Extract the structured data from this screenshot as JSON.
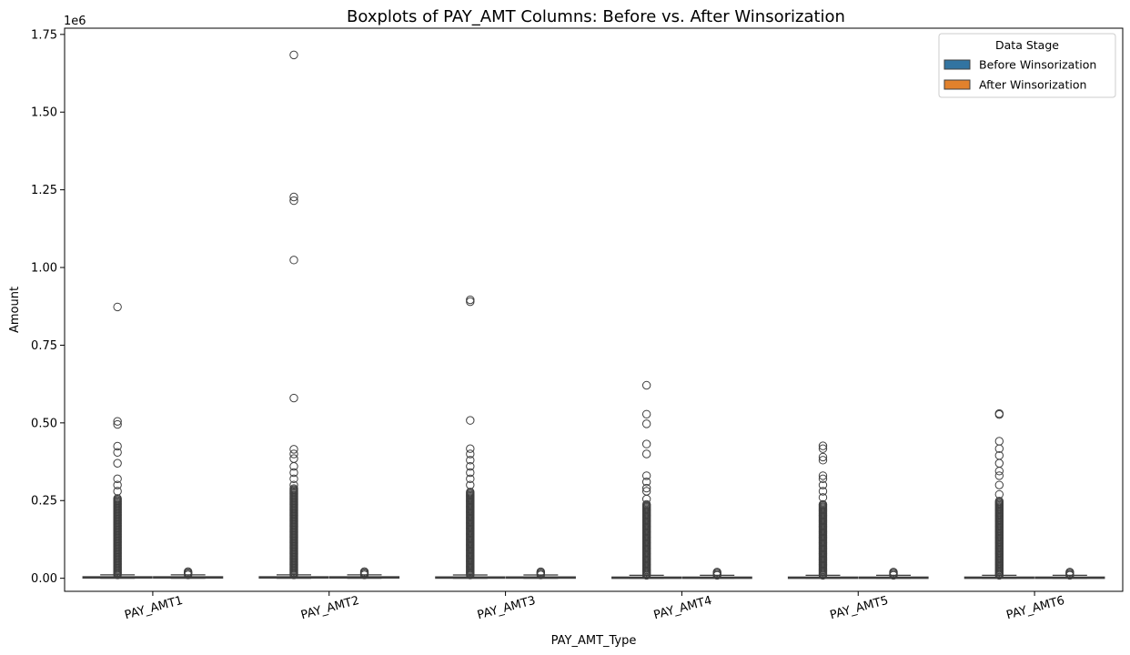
{
  "chart_data": {
    "type": "box",
    "title": "Boxplots of PAY_AMT Columns: Before vs. After Winsorization",
    "xlabel": "PAY_AMT_Type",
    "ylabel": "Amount",
    "y_offset_text": "1e6",
    "y_tick_labels": [
      "0.00",
      "0.25",
      "0.50",
      "0.75",
      "1.00",
      "1.25",
      "1.50",
      "1.75"
    ],
    "y_ticks": [
      0,
      250000,
      500000,
      750000,
      1000000,
      1250000,
      1500000,
      1750000
    ],
    "ylim": [
      -42000,
      1770000
    ],
    "categories": [
      "PAY_AMT1",
      "PAY_AMT2",
      "PAY_AMT3",
      "PAY_AMT4",
      "PAY_AMT5",
      "PAY_AMT6"
    ],
    "x_tick_rotation_deg": -15,
    "grid": false,
    "legend": {
      "title": "Data Stage",
      "position": "top-right",
      "entries": [
        "Before Winsorization",
        "After Winsorization"
      ]
    },
    "series": [
      {
        "name": "Before Winsorization",
        "color": "#3274a1",
        "boxes": [
          {
            "q1": 1000,
            "median": 2100,
            "q3": 5000,
            "whisker_low": 0,
            "whisker_high": 11000,
            "outlier_dense_to": 260000,
            "outliers": [
              280000,
              300000,
              320000,
              370000,
              405000,
              425000,
              495000,
              505000,
              873000
            ]
          },
          {
            "q1": 830,
            "median": 2000,
            "q3": 5000,
            "whisker_low": 0,
            "whisker_high": 11000,
            "outlier_dense_to": 290000,
            "outliers": [
              300000,
              320000,
              340000,
              360000,
              385000,
              400000,
              415000,
              580000,
              1024000,
              1215000,
              1227000,
              1684000
            ]
          },
          {
            "q1": 390,
            "median": 1800,
            "q3": 4500,
            "whisker_low": 0,
            "whisker_high": 10700,
            "outlier_dense_to": 280000,
            "outliers": [
              300000,
              320000,
              340000,
              360000,
              380000,
              400000,
              417000,
              508000,
              890000,
              896000
            ]
          },
          {
            "q1": 300,
            "median": 1500,
            "q3": 4000,
            "whisker_low": 0,
            "whisker_high": 9500,
            "outlier_dense_to": 240000,
            "outliers": [
              255000,
              280000,
              290000,
              310000,
              330000,
              400000,
              432000,
              497000,
              528000,
              621000
            ]
          },
          {
            "q1": 250,
            "median": 1500,
            "q3": 4000,
            "whisker_low": 0,
            "whisker_high": 9500,
            "outlier_dense_to": 240000,
            "outliers": [
              260000,
              280000,
              300000,
              320000,
              330000,
              380000,
              390000,
              417000,
              426000
            ]
          },
          {
            "q1": 120,
            "median": 1500,
            "q3": 4000,
            "whisker_low": 0,
            "whisker_high": 9600,
            "outlier_dense_to": 250000,
            "outliers": [
              270000,
              300000,
              330000,
              345000,
              370000,
              395000,
              417000,
              441000,
              527000,
              530000
            ]
          }
        ]
      },
      {
        "name": "After Winsorization",
        "color": "#e1812c",
        "boxes": [
          {
            "q1": 1000,
            "median": 2100,
            "q3": 5000,
            "whisker_low": 0,
            "whisker_high": 11000,
            "outlier_dense_to": 25000,
            "outliers": []
          },
          {
            "q1": 830,
            "median": 2000,
            "q3": 5000,
            "whisker_low": 0,
            "whisker_high": 11000,
            "outlier_dense_to": 25000,
            "outliers": []
          },
          {
            "q1": 390,
            "median": 1800,
            "q3": 4500,
            "whisker_low": 0,
            "whisker_high": 10700,
            "outlier_dense_to": 24000,
            "outliers": []
          },
          {
            "q1": 300,
            "median": 1500,
            "q3": 4000,
            "whisker_low": 0,
            "whisker_high": 9500,
            "outlier_dense_to": 22000,
            "outliers": []
          },
          {
            "q1": 250,
            "median": 1500,
            "q3": 4000,
            "whisker_low": 0,
            "whisker_high": 9500,
            "outlier_dense_to": 22000,
            "outliers": []
          },
          {
            "q1": 120,
            "median": 1500,
            "q3": 4000,
            "whisker_low": 0,
            "whisker_high": 9600,
            "outlier_dense_to": 22000,
            "outliers": []
          }
        ]
      }
    ]
  }
}
